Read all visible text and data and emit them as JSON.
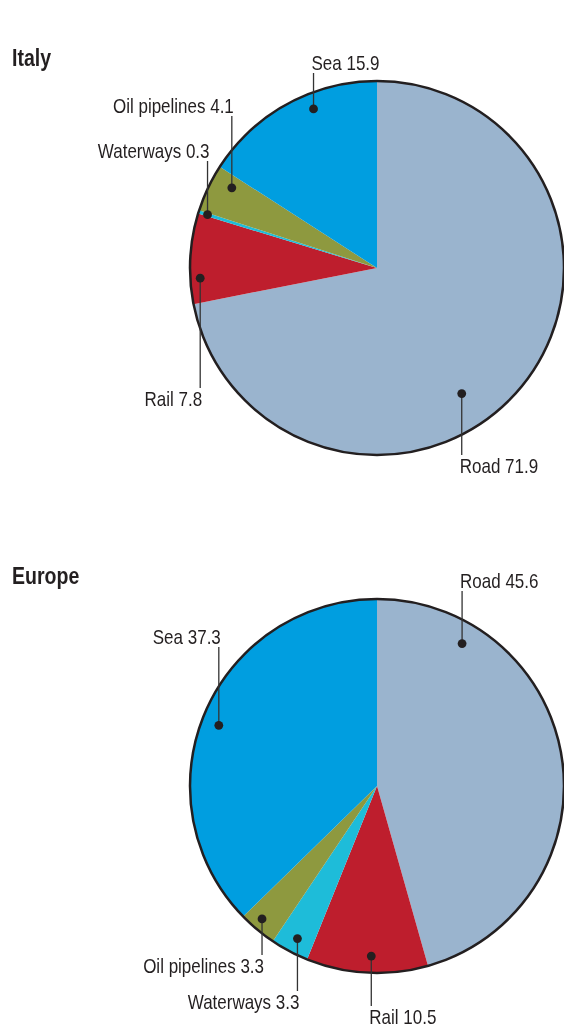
{
  "chart_data": [
    {
      "type": "pie",
      "title": "Italy",
      "categories": [
        "Road 71.9",
        "Rail 7.8",
        "Waterways 0.3",
        "Oil pipelines 4.1",
        "Sea 15.9"
      ],
      "values": [
        71.9,
        7.8,
        0.3,
        4.1,
        15.9
      ],
      "colors": [
        "#9ab4ce",
        "#be1e2d",
        "#1ebcd9",
        "#8e993f",
        "#009ee0"
      ]
    },
    {
      "type": "pie",
      "title": "Europe",
      "categories": [
        "Road 45.6",
        "Rail 10.5",
        "Waterways 3.3",
        "Oil pipelines 3.3",
        "Sea 37.3"
      ],
      "values": [
        45.6,
        10.5,
        3.3,
        3.3,
        37.3
      ],
      "colors": [
        "#9ab4ce",
        "#be1e2d",
        "#1ebcd9",
        "#8e993f",
        "#009ee0"
      ]
    }
  ]
}
